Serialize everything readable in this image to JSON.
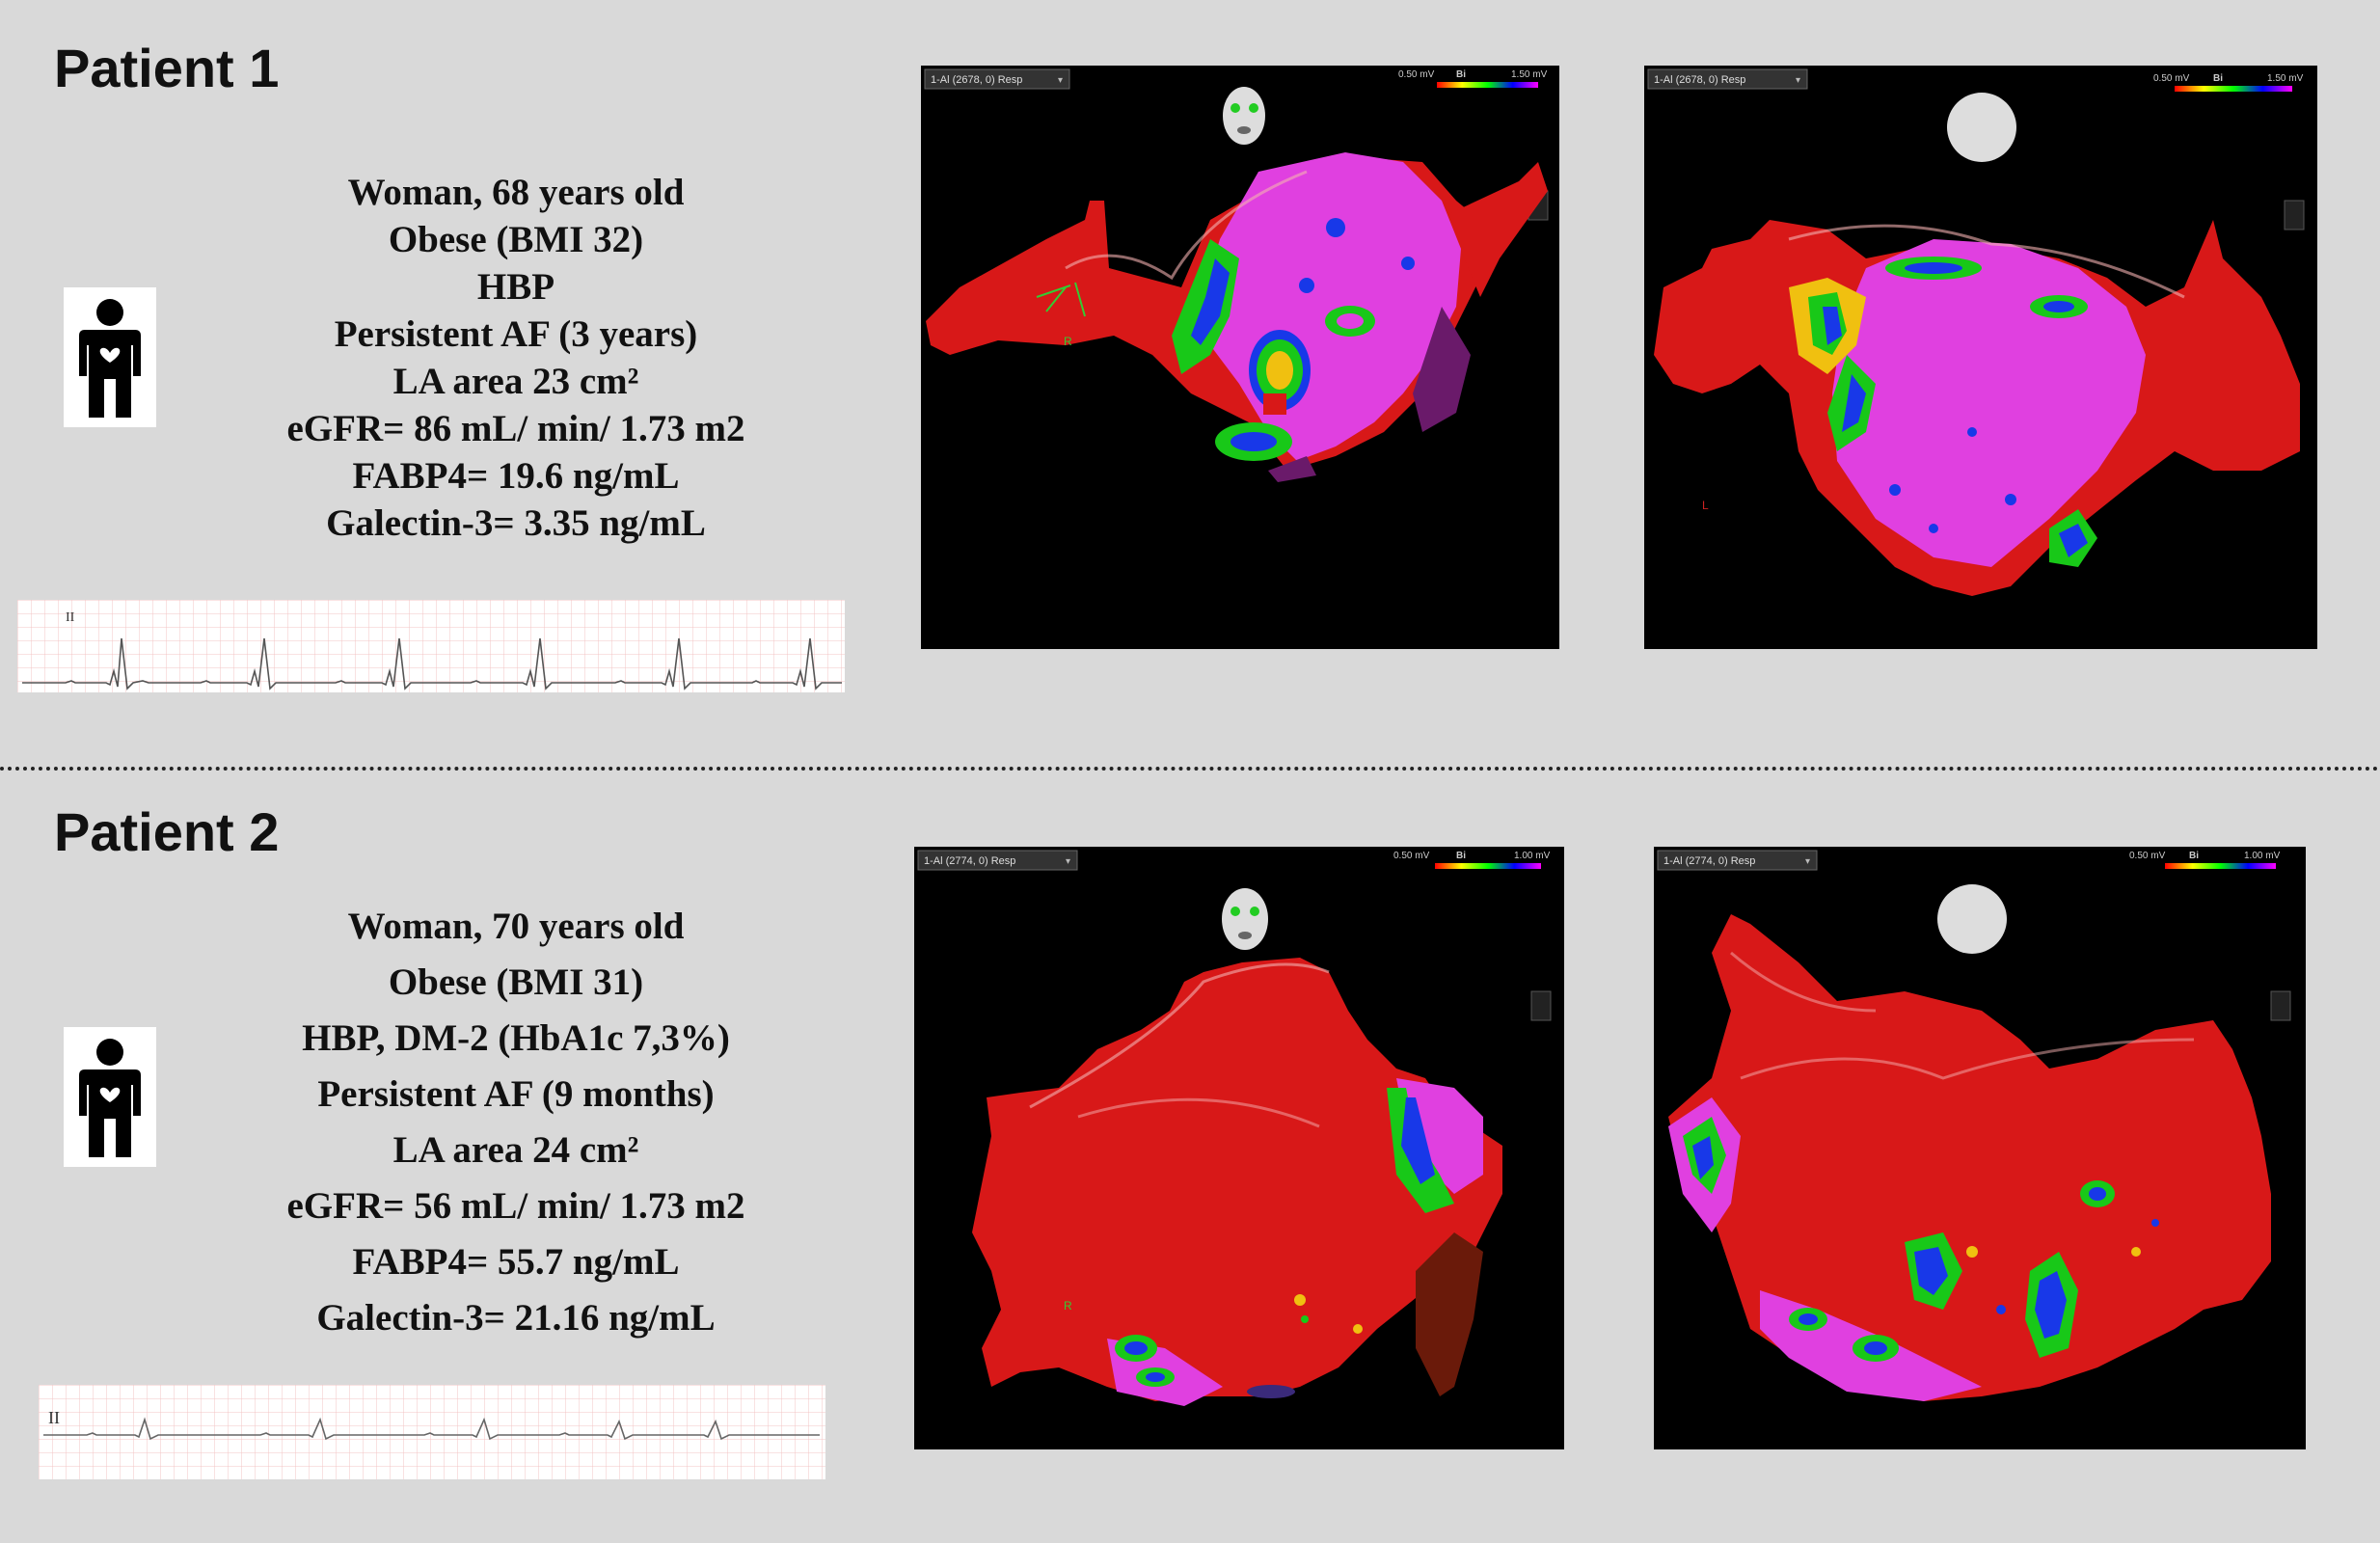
{
  "patients": [
    {
      "title": "Patient 1",
      "lines": [
        "Woman, 68 years old",
        "Obese (BMI 32)",
        "HBP",
        "Persistent AF (3 years)",
        "LA area 23 cm²",
        "eGFR= 86 mL/ min/ 1.73 m2",
        "FABP4= 19.6 ng/mL",
        "Galectin-3= 3.35 ng/mL"
      ],
      "ecg_lead": "II",
      "maps": [
        {
          "dropdown": "1-Al (2678, 0) Resp",
          "scale_min": "0.50 mV",
          "scale_mid": "Bi",
          "scale_max": "1.50 mV",
          "orientation": "face"
        },
        {
          "dropdown": "1-Al (2678, 0) Resp",
          "scale_min": "0.50 mV",
          "scale_mid": "Bi",
          "scale_max": "1.50 mV",
          "orientation": "back"
        }
      ]
    },
    {
      "title": "Patient 2",
      "lines": [
        "Woman, 70 years old",
        "Obese (BMI 31)",
        "HBP, DM-2 (HbA1c 7,3%)",
        "Persistent AF (9 months)",
        "LA area 24 cm²",
        "eGFR= 56 mL/ min/ 1.73 m2",
        "FABP4= 55.7 ng/mL",
        "Galectin-3= 21.16 ng/mL"
      ],
      "ecg_lead": "II",
      "maps": [
        {
          "dropdown": "1-Al (2774, 0) Resp",
          "scale_min": "0.50 mV",
          "scale_mid": "Bi",
          "scale_max": "1.00 mV",
          "orientation": "face"
        },
        {
          "dropdown": "1-Al (2774, 0) Resp",
          "scale_min": "0.50 mV",
          "scale_mid": "Bi",
          "scale_max": "1.00 mV",
          "orientation": "back"
        }
      ]
    }
  ],
  "colors": {
    "background": "#d9d9d9",
    "tissue_low_voltage": "#e040e0",
    "tissue_normal": "#e01010",
    "ecg_grid": "#f2b8b8"
  },
  "icons": [
    "person-heart-icon",
    "face-orientation-icon",
    "back-orientation-icon"
  ]
}
